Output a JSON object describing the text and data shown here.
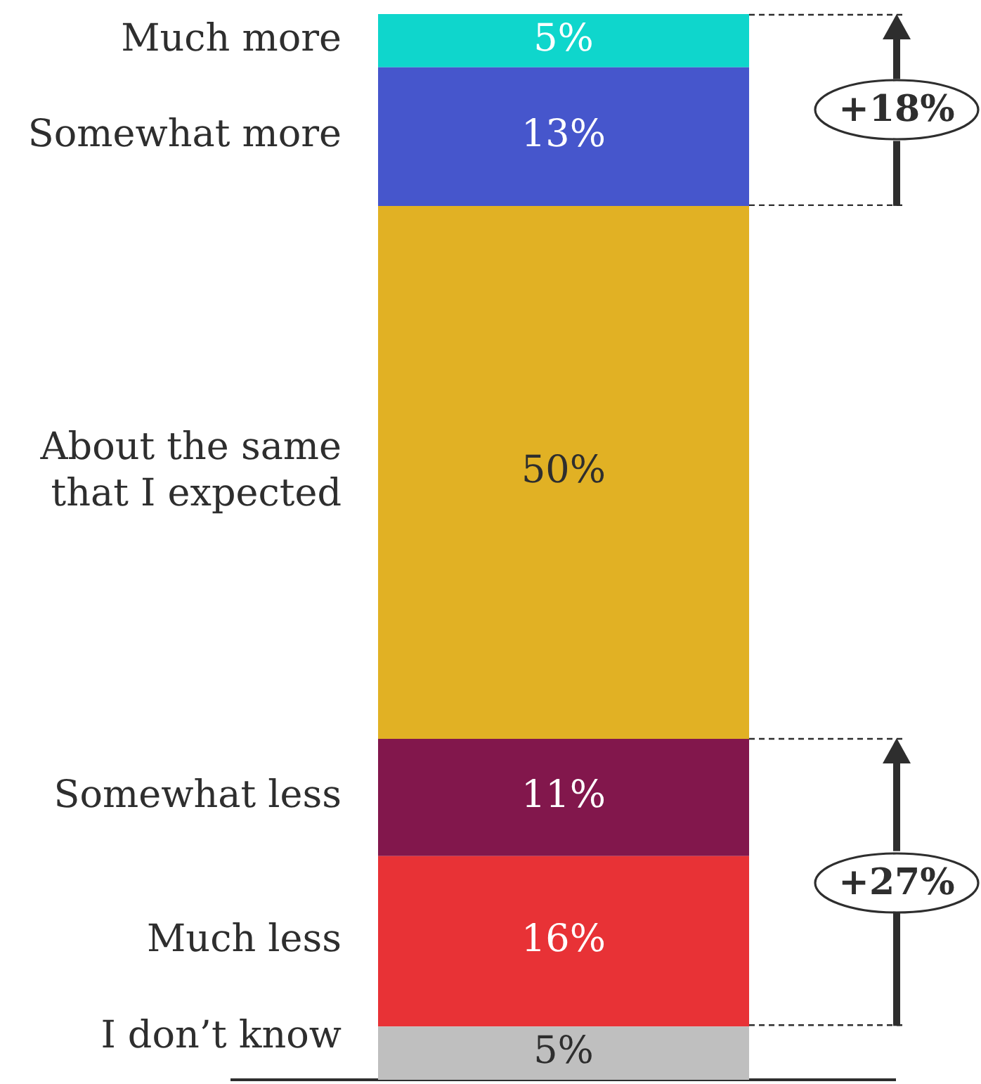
{
  "chart_data": {
    "type": "bar",
    "stacked": true,
    "categories": [
      null
    ],
    "series": [
      {
        "name": "I don’t know",
        "color": "#bfbfbf",
        "values": [
          5
        ],
        "value_labels": [
          "5%"
        ]
      },
      {
        "name": "Much less",
        "color": "#e83236",
        "values": [
          16
        ],
        "value_labels": [
          "16%"
        ]
      },
      {
        "name": "Somewhat less",
        "color": "#82174c",
        "values": [
          11
        ],
        "value_labels": [
          "11%"
        ]
      },
      {
        "name": "About the same that I expected",
        "color": "#e1b124",
        "values": [
          50
        ],
        "value_labels": [
          "50%"
        ]
      },
      {
        "name": "Somewhat more",
        "color": "#4656cc",
        "values": [
          13
        ],
        "value_labels": [
          "13%"
        ]
      },
      {
        "name": "Much more",
        "color": "#0fd6cc",
        "values": [
          5
        ],
        "value_labels": [
          "5%"
        ]
      }
    ],
    "ylim": [
      0,
      100
    ],
    "tick_labels": false,
    "annotations": [
      "+18%",
      "+27%"
    ]
  }
}
